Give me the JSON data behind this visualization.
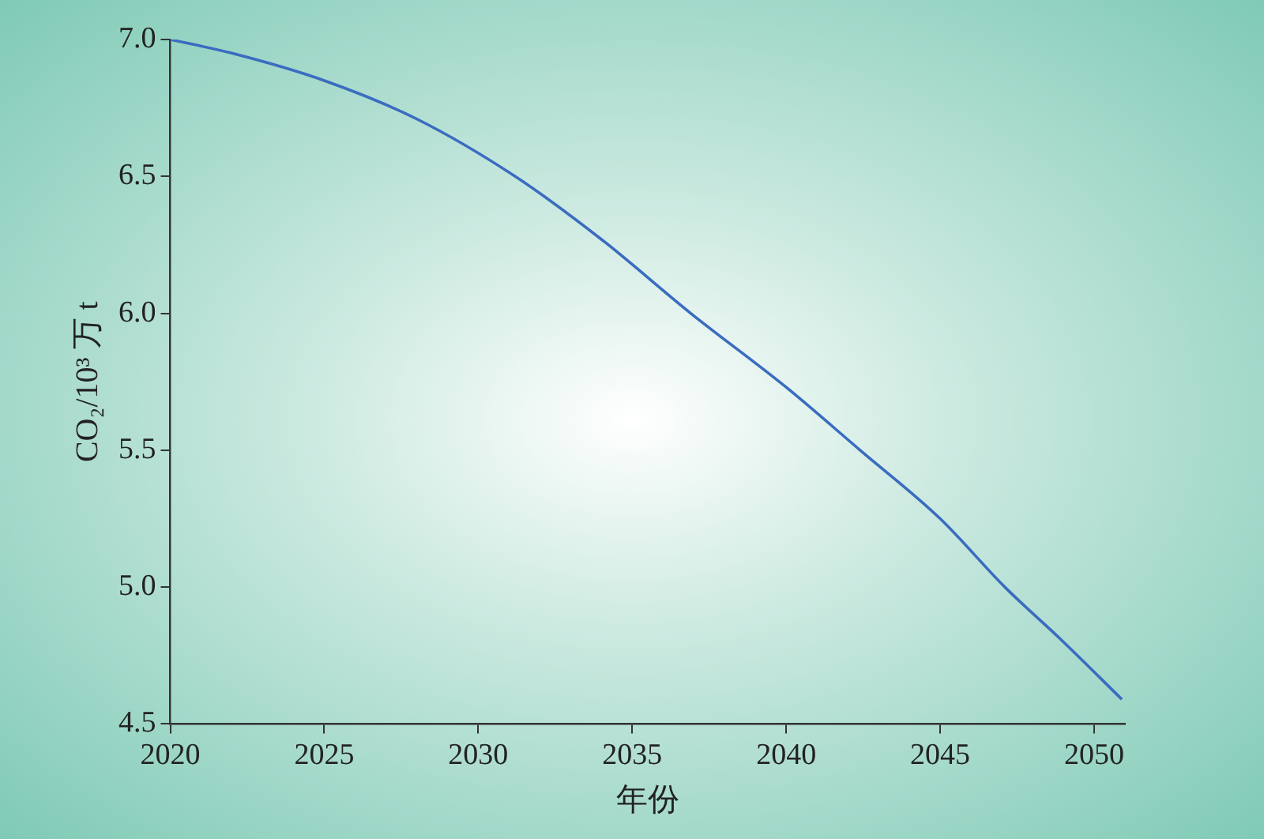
{
  "chart_data": {
    "type": "line",
    "xlabel": "年份",
    "ylabel": "CO₂/10³ 万 t",
    "x": [
      2020,
      2022,
      2025,
      2028,
      2031.2,
      2034,
      2036.9,
      2040,
      2042.4,
      2045,
      2047.1,
      2049,
      2050.9
    ],
    "series": [
      {
        "color": "#3a6cc0",
        "values": [
          7.0,
          6.95,
          6.85,
          6.71,
          6.5,
          6.27,
          6.0,
          5.73,
          5.5,
          5.25,
          5.0,
          4.8,
          4.59
        ]
      }
    ],
    "xlim": [
      2020,
      2051
    ],
    "xticks": [
      2020,
      2025,
      2030,
      2035,
      2040,
      2045,
      2050
    ],
    "ylim": [
      4.5,
      7.0
    ],
    "yticks": [
      4.5,
      {
        "value": 5,
        "label": "5.0"
      },
      5.5,
      {
        "value": 6,
        "label": "6.0"
      },
      6.5,
      {
        "value": 7,
        "label": "7.0"
      }
    ],
    "grid": false,
    "legend": false,
    "marker": "none",
    "line_style": "solid"
  }
}
